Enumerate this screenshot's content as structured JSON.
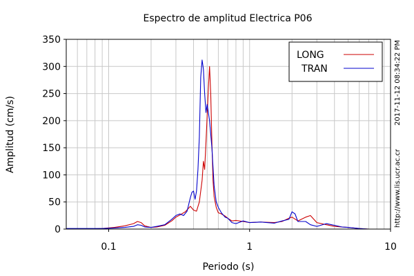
{
  "chart_data": {
    "type": "line",
    "title": "Espectro de amplitud Electrica P06",
    "xlabel": "Periodo (s)",
    "ylabel": "Amplitud (cm/s)",
    "x_scale": "log",
    "xlim": [
      0.05,
      10
    ],
    "ylim": [
      0,
      350
    ],
    "x_ticks": [
      {
        "value": 0.1,
        "label": "0.1"
      },
      {
        "value": 1,
        "label": "1"
      },
      {
        "value": 10,
        "label": "10"
      }
    ],
    "y_ticks": [
      {
        "value": 0,
        "label": "0"
      },
      {
        "value": 50,
        "label": "50"
      },
      {
        "value": 100,
        "label": "100"
      },
      {
        "value": 150,
        "label": "150"
      },
      {
        "value": 200,
        "label": "200"
      },
      {
        "value": 250,
        "label": "250"
      },
      {
        "value": 300,
        "label": "300"
      },
      {
        "value": 350,
        "label": "350"
      }
    ],
    "grid": true,
    "legend_position": "top-right",
    "side_labels": {
      "timestamp": "2017-11-12 08:34:22 PM",
      "url": "http://www.lis.ucr.ac.cr"
    },
    "series": [
      {
        "name": "LONG",
        "color": "#cc0000",
        "x": [
          0.05,
          0.07,
          0.09,
          0.11,
          0.13,
          0.15,
          0.16,
          0.17,
          0.18,
          0.2,
          0.22,
          0.25,
          0.28,
          0.3,
          0.32,
          0.35,
          0.38,
          0.4,
          0.42,
          0.44,
          0.46,
          0.47,
          0.48,
          0.49,
          0.5,
          0.51,
          0.52,
          0.53,
          0.54,
          0.55,
          0.56,
          0.58,
          0.6,
          0.63,
          0.67,
          0.7,
          0.75,
          0.8,
          0.9,
          1.0,
          1.2,
          1.5,
          1.7,
          1.9,
          2.0,
          2.2,
          2.5,
          2.7,
          3.0,
          3.5,
          4.0,
          4.5,
          5.0,
          5.5,
          6.0,
          7.0,
          8.0,
          10.0
        ],
        "y": [
          0,
          0,
          1,
          3,
          6,
          10,
          14,
          12,
          6,
          3,
          4,
          7,
          15,
          22,
          26,
          32,
          42,
          35,
          33,
          50,
          90,
          125,
          110,
          160,
          210,
          260,
          300,
          250,
          160,
          90,
          60,
          40,
          30,
          28,
          24,
          20,
          15,
          16,
          14,
          12,
          13,
          12,
          14,
          20,
          22,
          15,
          22,
          25,
          12,
          8,
          5,
          4,
          3,
          2,
          1,
          0,
          0,
          0
        ]
      },
      {
        "name": "TRAN",
        "color": "#0000cc",
        "x": [
          0.05,
          0.07,
          0.09,
          0.11,
          0.13,
          0.15,
          0.16,
          0.17,
          0.18,
          0.2,
          0.22,
          0.25,
          0.28,
          0.3,
          0.32,
          0.34,
          0.36,
          0.38,
          0.39,
          0.4,
          0.41,
          0.42,
          0.43,
          0.44,
          0.45,
          0.46,
          0.47,
          0.48,
          0.49,
          0.5,
          0.52,
          0.54,
          0.56,
          0.58,
          0.6,
          0.63,
          0.67,
          0.7,
          0.75,
          0.8,
          0.9,
          1.0,
          1.2,
          1.5,
          1.7,
          1.9,
          2.0,
          2.1,
          2.2,
          2.5,
          2.7,
          3.0,
          3.5,
          4.0,
          4.5,
          5.0,
          5.5,
          6.0,
          7.0,
          8.0,
          10.0
        ],
        "y": [
          1,
          1,
          1,
          2,
          3,
          5,
          8,
          7,
          4,
          3,
          5,
          8,
          18,
          25,
          28,
          25,
          33,
          58,
          68,
          70,
          55,
          70,
          110,
          170,
          280,
          312,
          295,
          250,
          215,
          230,
          200,
          150,
          80,
          50,
          40,
          30,
          22,
          20,
          12,
          10,
          15,
          12,
          13,
          11,
          15,
          18,
          32,
          28,
          14,
          14,
          8,
          5,
          10,
          7,
          4,
          3,
          2,
          1,
          0,
          0,
          0
        ]
      }
    ]
  }
}
